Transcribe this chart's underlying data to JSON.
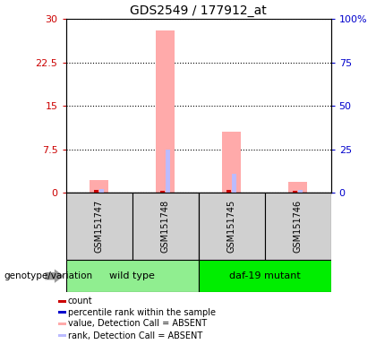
{
  "title": "GDS2549 / 177912_at",
  "samples": [
    "GSM151747",
    "GSM151748",
    "GSM151745",
    "GSM151746"
  ],
  "groups": [
    {
      "label": "wild type",
      "color": "#90ee90",
      "samples": [
        0,
        1
      ]
    },
    {
      "label": "daf-19 mutant",
      "color": "#00ee00",
      "samples": [
        2,
        3
      ]
    }
  ],
  "pink_bars": [
    2.2,
    28.0,
    10.5,
    1.8
  ],
  "red_bars": [
    0.4,
    0.3,
    0.4,
    0.35
  ],
  "blue_bars": [
    0.6,
    7.5,
    3.2,
    0.4
  ],
  "lavender_bars": [
    0.6,
    7.5,
    3.2,
    0.4
  ],
  "left_ylim": [
    0,
    30
  ],
  "right_ylim": [
    0,
    100
  ],
  "left_yticks": [
    0,
    7.5,
    15,
    22.5,
    30
  ],
  "right_yticks": [
    0,
    25,
    50,
    75,
    100
  ],
  "left_yticklabels": [
    "0",
    "7.5",
    "15",
    "22.5",
    "30"
  ],
  "right_yticklabels": [
    "0",
    "25",
    "50",
    "75",
    "100%"
  ],
  "left_tick_color": "#cc0000",
  "right_tick_color": "#0000cc",
  "group_label": "genotype/variation",
  "legend_items": [
    {
      "label": "count",
      "color": "#cc0000"
    },
    {
      "label": "percentile rank within the sample",
      "color": "#0000cc"
    },
    {
      "label": "value, Detection Call = ABSENT",
      "color": "#ffaaaa"
    },
    {
      "label": "rank, Detection Call = ABSENT",
      "color": "#bbbbff"
    }
  ]
}
